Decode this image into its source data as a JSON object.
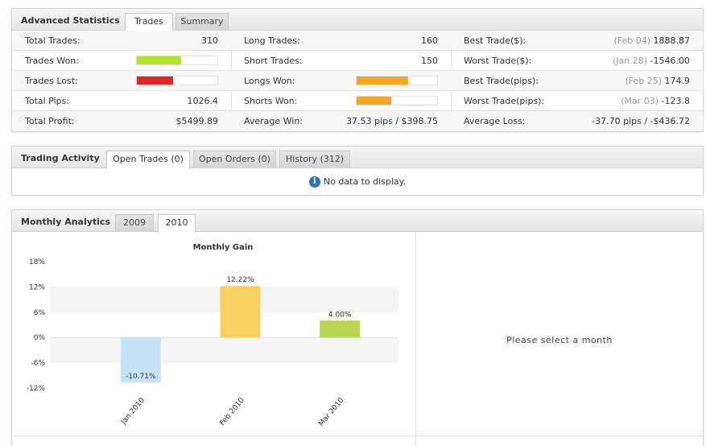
{
  "advanced": {
    "title": "Advanced Statistics",
    "tabs": [
      {
        "label": "Trades"
      },
      {
        "label": "Summary"
      }
    ],
    "col1": [
      {
        "label": "Total Trades:",
        "value": "310"
      },
      {
        "label": "Trades Won:",
        "bar": 0.55,
        "color": "#b4e12b"
      },
      {
        "label": "Trades Lost:",
        "bar": 0.45,
        "color": "#dd2727"
      },
      {
        "label": "Total Pips:",
        "value": "1026.4"
      },
      {
        "label": "Total Profit:",
        "value": "$5499.89"
      }
    ],
    "col2": [
      {
        "label": "Long Trades:",
        "value": "160"
      },
      {
        "label": "Short Trades:",
        "value": "150"
      },
      {
        "label": "Longs Won:",
        "bar": 0.64,
        "color": "#f5a623"
      },
      {
        "label": "Shorts Won:",
        "bar": 0.43,
        "color": "#f5a623"
      },
      {
        "label": "Average Win:",
        "value": "37.53 pips / $398.75"
      }
    ],
    "col3": [
      {
        "label": "Best Trade($):",
        "sub": "(Feb 04)",
        "value": "1888.87"
      },
      {
        "label": "Worst Trade($):",
        "sub": "(Jan 28)",
        "value": "-1546.00"
      },
      {
        "label": "Best Trade(pips):",
        "sub": "(Feb 25)",
        "value": "174.9"
      },
      {
        "label": "Worst Trade(pips):",
        "sub": "(Mar 03)",
        "value": "-123.8"
      },
      {
        "label": "Average Loss:",
        "sub": "",
        "value": "-37.70 pips / -$436.72"
      }
    ]
  },
  "activity": {
    "title": "Trading Activity",
    "tabs": [
      {
        "label": "Open Trades (0)"
      },
      {
        "label": "Open Orders (0)"
      },
      {
        "label": "History (312)"
      }
    ],
    "no_data": "No data to display."
  },
  "monthly": {
    "title": "Monthly Analytics",
    "tabs": [
      {
        "label": "2009"
      },
      {
        "label": "2010"
      }
    ],
    "select_msg": "Please select a month"
  },
  "chart_data": {
    "type": "bar",
    "title": "Monthly Gain",
    "categories": [
      "Jan 2010",
      "Feb 2010",
      "Mar 2010"
    ],
    "values": [
      -10.71,
      12.22,
      4.0
    ],
    "value_labels": [
      "-10.71%",
      "12.22%",
      "4.00%"
    ],
    "colors": [
      "#c6e2f7",
      "#f7d060",
      "#b7d453"
    ],
    "yticks": [
      "18%",
      "12%",
      "6%",
      "0%",
      "-6%",
      "-12%"
    ],
    "ytick_values": [
      18,
      12,
      6,
      0,
      -6,
      -12
    ],
    "ylim": [
      -12,
      18
    ]
  }
}
